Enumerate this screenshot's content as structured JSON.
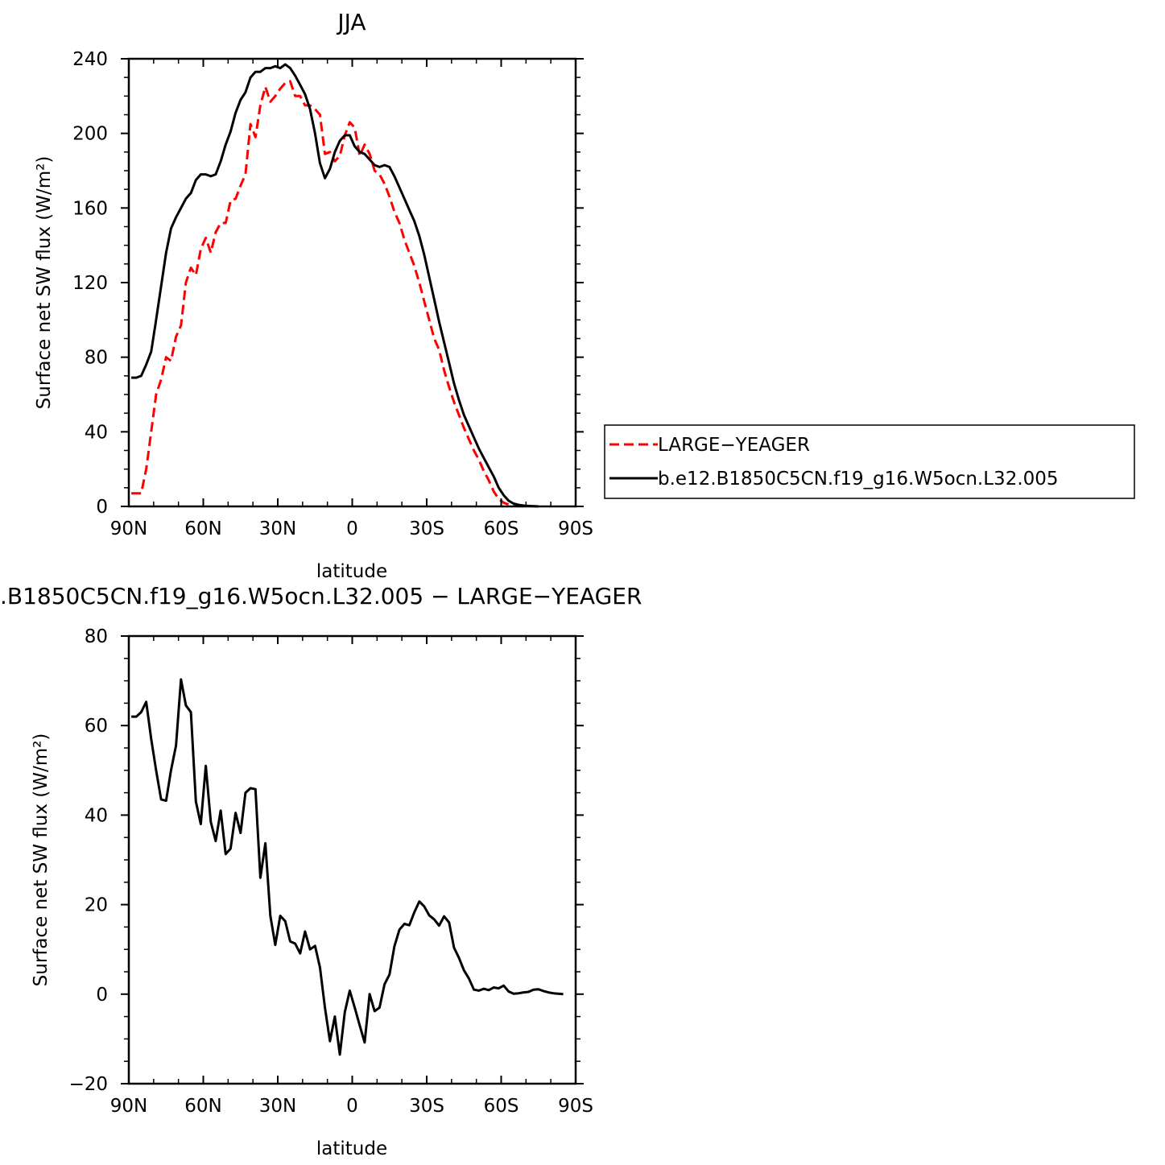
{
  "chart_data": [
    {
      "type": "line",
      "title": "JJA",
      "xlabel": "latitude",
      "ylabel": "Surface net SW flux (W/m²)",
      "xlim": [
        90,
        -90
      ],
      "ylim": [
        0,
        240
      ],
      "xticks": [
        {
          "value": 90,
          "label": "90N"
        },
        {
          "value": 60,
          "label": "60N"
        },
        {
          "value": 30,
          "label": "30N"
        },
        {
          "value": 0,
          "label": "0"
        },
        {
          "value": -30,
          "label": "30S"
        },
        {
          "value": -60,
          "label": "60S"
        },
        {
          "value": -90,
          "label": "90S"
        }
      ],
      "yticks": [
        0,
        40,
        80,
        120,
        160,
        200,
        240
      ],
      "grid": false,
      "legend_position": "right",
      "series": [
        {
          "name": "LARGE−YEAGER",
          "color": "#ff0000",
          "dash": "dashed",
          "points": [
            [
              89,
              7
            ],
            [
              87,
              7
            ],
            [
              85,
              7
            ],
            [
              83,
              20
            ],
            [
              81,
              40
            ],
            [
              79,
              60
            ],
            [
              77,
              68
            ],
            [
              75,
              80
            ],
            [
              73,
              78
            ],
            [
              71,
              91
            ],
            [
              69,
              97
            ],
            [
              67,
              120
            ],
            [
              65,
              128
            ],
            [
              63,
              124
            ],
            [
              61,
              138
            ],
            [
              59,
              144
            ],
            [
              57,
              136
            ],
            [
              55,
              147
            ],
            [
              53,
              152
            ],
            [
              51,
              152
            ],
            [
              49,
              164
            ],
            [
              47,
              165
            ],
            [
              45,
              172
            ],
            [
              43,
              178
            ],
            [
              41,
              205
            ],
            [
              39,
              198
            ],
            [
              37,
              215
            ],
            [
              35,
              225
            ],
            [
              33,
              217
            ],
            [
              31,
              220
            ],
            [
              29,
              224
            ],
            [
              27,
              227
            ],
            [
              25,
              228
            ],
            [
              23,
              220
            ],
            [
              21,
              220
            ],
            [
              19,
              215
            ],
            [
              17,
              215
            ],
            [
              15,
              213
            ],
            [
              13,
              210
            ],
            [
              11,
              189
            ],
            [
              9,
              190
            ],
            [
              7,
              185
            ],
            [
              5,
              188
            ],
            [
              3,
              199
            ],
            [
              1,
              206
            ],
            [
              -1,
              203
            ],
            [
              -3,
              188
            ],
            [
              -5,
              194
            ],
            [
              -7,
              189
            ],
            [
              -9,
              180
            ],
            [
              -11,
              178
            ],
            [
              -13,
              173
            ],
            [
              -15,
              166
            ],
            [
              -17,
              158
            ],
            [
              -19,
              152
            ],
            [
              -21,
              143
            ],
            [
              -23,
              136
            ],
            [
              -25,
              129
            ],
            [
              -27,
              120
            ],
            [
              -29,
              110
            ],
            [
              -31,
              100
            ],
            [
              -33,
              90
            ],
            [
              -35,
              84
            ],
            [
              -37,
              73
            ],
            [
              -39,
              64
            ],
            [
              -41,
              56
            ],
            [
              -43,
              49
            ],
            [
              -45,
              42
            ],
            [
              -47,
              36
            ],
            [
              -49,
              30
            ],
            [
              -51,
              25
            ],
            [
              -53,
              19
            ],
            [
              -55,
              14
            ],
            [
              -57,
              8
            ],
            [
              -59,
              4
            ],
            [
              -61,
              2
            ],
            [
              -63,
              1
            ],
            [
              -65,
              0.5
            ],
            [
              -67,
              0.2
            ],
            [
              -70,
              0
            ]
          ]
        },
        {
          "name": "b.e12.B1850C5CN.f19_g16.W5ocn.L32.005",
          "color": "#000000",
          "dash": "solid",
          "points": [
            [
              89,
              69
            ],
            [
              87,
              69
            ],
            [
              85,
              70
            ],
            [
              83,
              76
            ],
            [
              81,
              83
            ],
            [
              79,
              100
            ],
            [
              77,
              118
            ],
            [
              75,
              136
            ],
            [
              73,
              149
            ],
            [
              71,
              155
            ],
            [
              69,
              160
            ],
            [
              67,
              165
            ],
            [
              65,
              168
            ],
            [
              63,
              175
            ],
            [
              61,
              178
            ],
            [
              59,
              178
            ],
            [
              57,
              177
            ],
            [
              55,
              178
            ],
            [
              53,
              185
            ],
            [
              51,
              194
            ],
            [
              49,
              201
            ],
            [
              47,
              211
            ],
            [
              45,
              218
            ],
            [
              43,
              222
            ],
            [
              41,
              230
            ],
            [
              39,
              233
            ],
            [
              37,
              233
            ],
            [
              35,
              235
            ],
            [
              33,
              235
            ],
            [
              31,
              236
            ],
            [
              29,
              235
            ],
            [
              27,
              237
            ],
            [
              25,
              235
            ],
            [
              23,
              231
            ],
            [
              21,
              226
            ],
            [
              19,
              221
            ],
            [
              17,
              213
            ],
            [
              15,
              200
            ],
            [
              13,
              184
            ],
            [
              11,
              176
            ],
            [
              9,
              181
            ],
            [
              7,
              190
            ],
            [
              5,
              196
            ],
            [
              3,
              199
            ],
            [
              1,
              199
            ],
            [
              -1,
              193
            ],
            [
              -3,
              190
            ],
            [
              -5,
              189
            ],
            [
              -7,
              186
            ],
            [
              -9,
              183
            ],
            [
              -11,
              182
            ],
            [
              -13,
              183
            ],
            [
              -15,
              182
            ],
            [
              -17,
              177
            ],
            [
              -19,
              171
            ],
            [
              -21,
              165
            ],
            [
              -23,
              159
            ],
            [
              -25,
              153
            ],
            [
              -27,
              145
            ],
            [
              -29,
              135
            ],
            [
              -31,
              123
            ],
            [
              -33,
              111
            ],
            [
              -35,
              99
            ],
            [
              -37,
              88
            ],
            [
              -39,
              77
            ],
            [
              -41,
              66
            ],
            [
              -43,
              57
            ],
            [
              -45,
              49
            ],
            [
              -47,
              43
            ],
            [
              -49,
              37
            ],
            [
              -51,
              31
            ],
            [
              -53,
              26
            ],
            [
              -55,
              21
            ],
            [
              -57,
              16
            ],
            [
              -59,
              10
            ],
            [
              -61,
              6
            ],
            [
              -63,
              3
            ],
            [
              -65,
              1.5
            ],
            [
              -67,
              0.8
            ],
            [
              -70,
              0.3
            ],
            [
              -75,
              0
            ]
          ]
        }
      ]
    },
    {
      "type": "line",
      "title": ".B1850C5CN.f19_g16.W5ocn.L32.005 − LARGE−YEAGER",
      "xlabel": "latitude",
      "ylabel": "Surface net SW flux (W/m²)",
      "xlim": [
        90,
        -90
      ],
      "ylim": [
        -20,
        80
      ],
      "xticks": [
        {
          "value": 90,
          "label": "90N"
        },
        {
          "value": 60,
          "label": "60N"
        },
        {
          "value": 30,
          "label": "30N"
        },
        {
          "value": 0,
          "label": "0"
        },
        {
          "value": -30,
          "label": "30S"
        },
        {
          "value": -60,
          "label": "60S"
        },
        {
          "value": -90,
          "label": "90S"
        }
      ],
      "yticks": [
        -20,
        0,
        20,
        40,
        60,
        80
      ],
      "ytick_labels": [
        "−20",
        "0",
        "20",
        "40",
        "60",
        "80"
      ],
      "grid": false,
      "series": [
        {
          "color": "#000000",
          "dash": "solid",
          "points": [
            [
              89,
              62
            ],
            [
              87,
              62
            ],
            [
              85,
              63
            ],
            [
              83,
              65.3
            ],
            [
              81,
              57
            ],
            [
              79,
              50
            ],
            [
              77,
              43.5
            ],
            [
              75,
              43.2
            ],
            [
              73,
              50
            ],
            [
              71,
              55.5
            ],
            [
              69,
              70.3
            ],
            [
              67,
              64.5
            ],
            [
              65,
              63
            ],
            [
              63,
              43
            ],
            [
              61,
              38
            ],
            [
              59,
              51
            ],
            [
              57,
              38.5
            ],
            [
              55,
              34.2
            ],
            [
              53,
              41
            ],
            [
              51,
              31.3
            ],
            [
              49,
              32.5
            ],
            [
              47,
              40.5
            ],
            [
              45,
              36
            ],
            [
              43,
              45
            ],
            [
              41,
              46
            ],
            [
              39,
              45.8
            ],
            [
              37,
              26
            ],
            [
              35,
              33.7
            ],
            [
              33,
              17.5
            ],
            [
              31,
              11
            ],
            [
              29,
              17.5
            ],
            [
              27,
              16.3
            ],
            [
              25,
              11.8
            ],
            [
              23,
              11.3
            ],
            [
              21,
              9.1
            ],
            [
              19,
              14
            ],
            [
              17,
              10
            ],
            [
              15,
              10.8
            ],
            [
              13,
              6
            ],
            [
              11,
              -3
            ],
            [
              9,
              -10.5
            ],
            [
              7,
              -5
            ],
            [
              5,
              -13.5
            ],
            [
              3,
              -4
            ],
            [
              1,
              0.8
            ],
            [
              -1,
              -3
            ],
            [
              -3,
              -7
            ],
            [
              -5,
              -10.8
            ],
            [
              -7,
              0
            ],
            [
              -9,
              -3.8
            ],
            [
              -11,
              -3
            ],
            [
              -13,
              2.2
            ],
            [
              -15,
              4.4
            ],
            [
              -17,
              10.7
            ],
            [
              -19,
              14.4
            ],
            [
              -21,
              15.7
            ],
            [
              -23,
              15.4
            ],
            [
              -25,
              18.3
            ],
            [
              -27,
              20.7
            ],
            [
              -29,
              19.6
            ],
            [
              -31,
              17.6
            ],
            [
              -33,
              16.7
            ],
            [
              -35,
              15.3
            ],
            [
              -37,
              17.4
            ],
            [
              -39,
              16
            ],
            [
              -41,
              10.4
            ],
            [
              -43,
              8.1
            ],
            [
              -45,
              5.3
            ],
            [
              -47,
              3.5
            ],
            [
              -49,
              1
            ],
            [
              -51,
              0.8
            ],
            [
              -53,
              1.2
            ],
            [
              -55,
              0.9
            ],
            [
              -57,
              1.5
            ],
            [
              -59,
              1.3
            ],
            [
              -61,
              1.9
            ],
            [
              -63,
              0.6
            ],
            [
              -65,
              0.1
            ],
            [
              -67,
              0.2
            ],
            [
              -69,
              0.4
            ],
            [
              -71,
              0.5
            ],
            [
              -73,
              1
            ],
            [
              -75,
              1.1
            ],
            [
              -77,
              0.7
            ],
            [
              -79,
              0.4
            ],
            [
              -81,
              0.2
            ],
            [
              -83,
              0.1
            ],
            [
              -85,
              0
            ]
          ]
        }
      ]
    }
  ]
}
